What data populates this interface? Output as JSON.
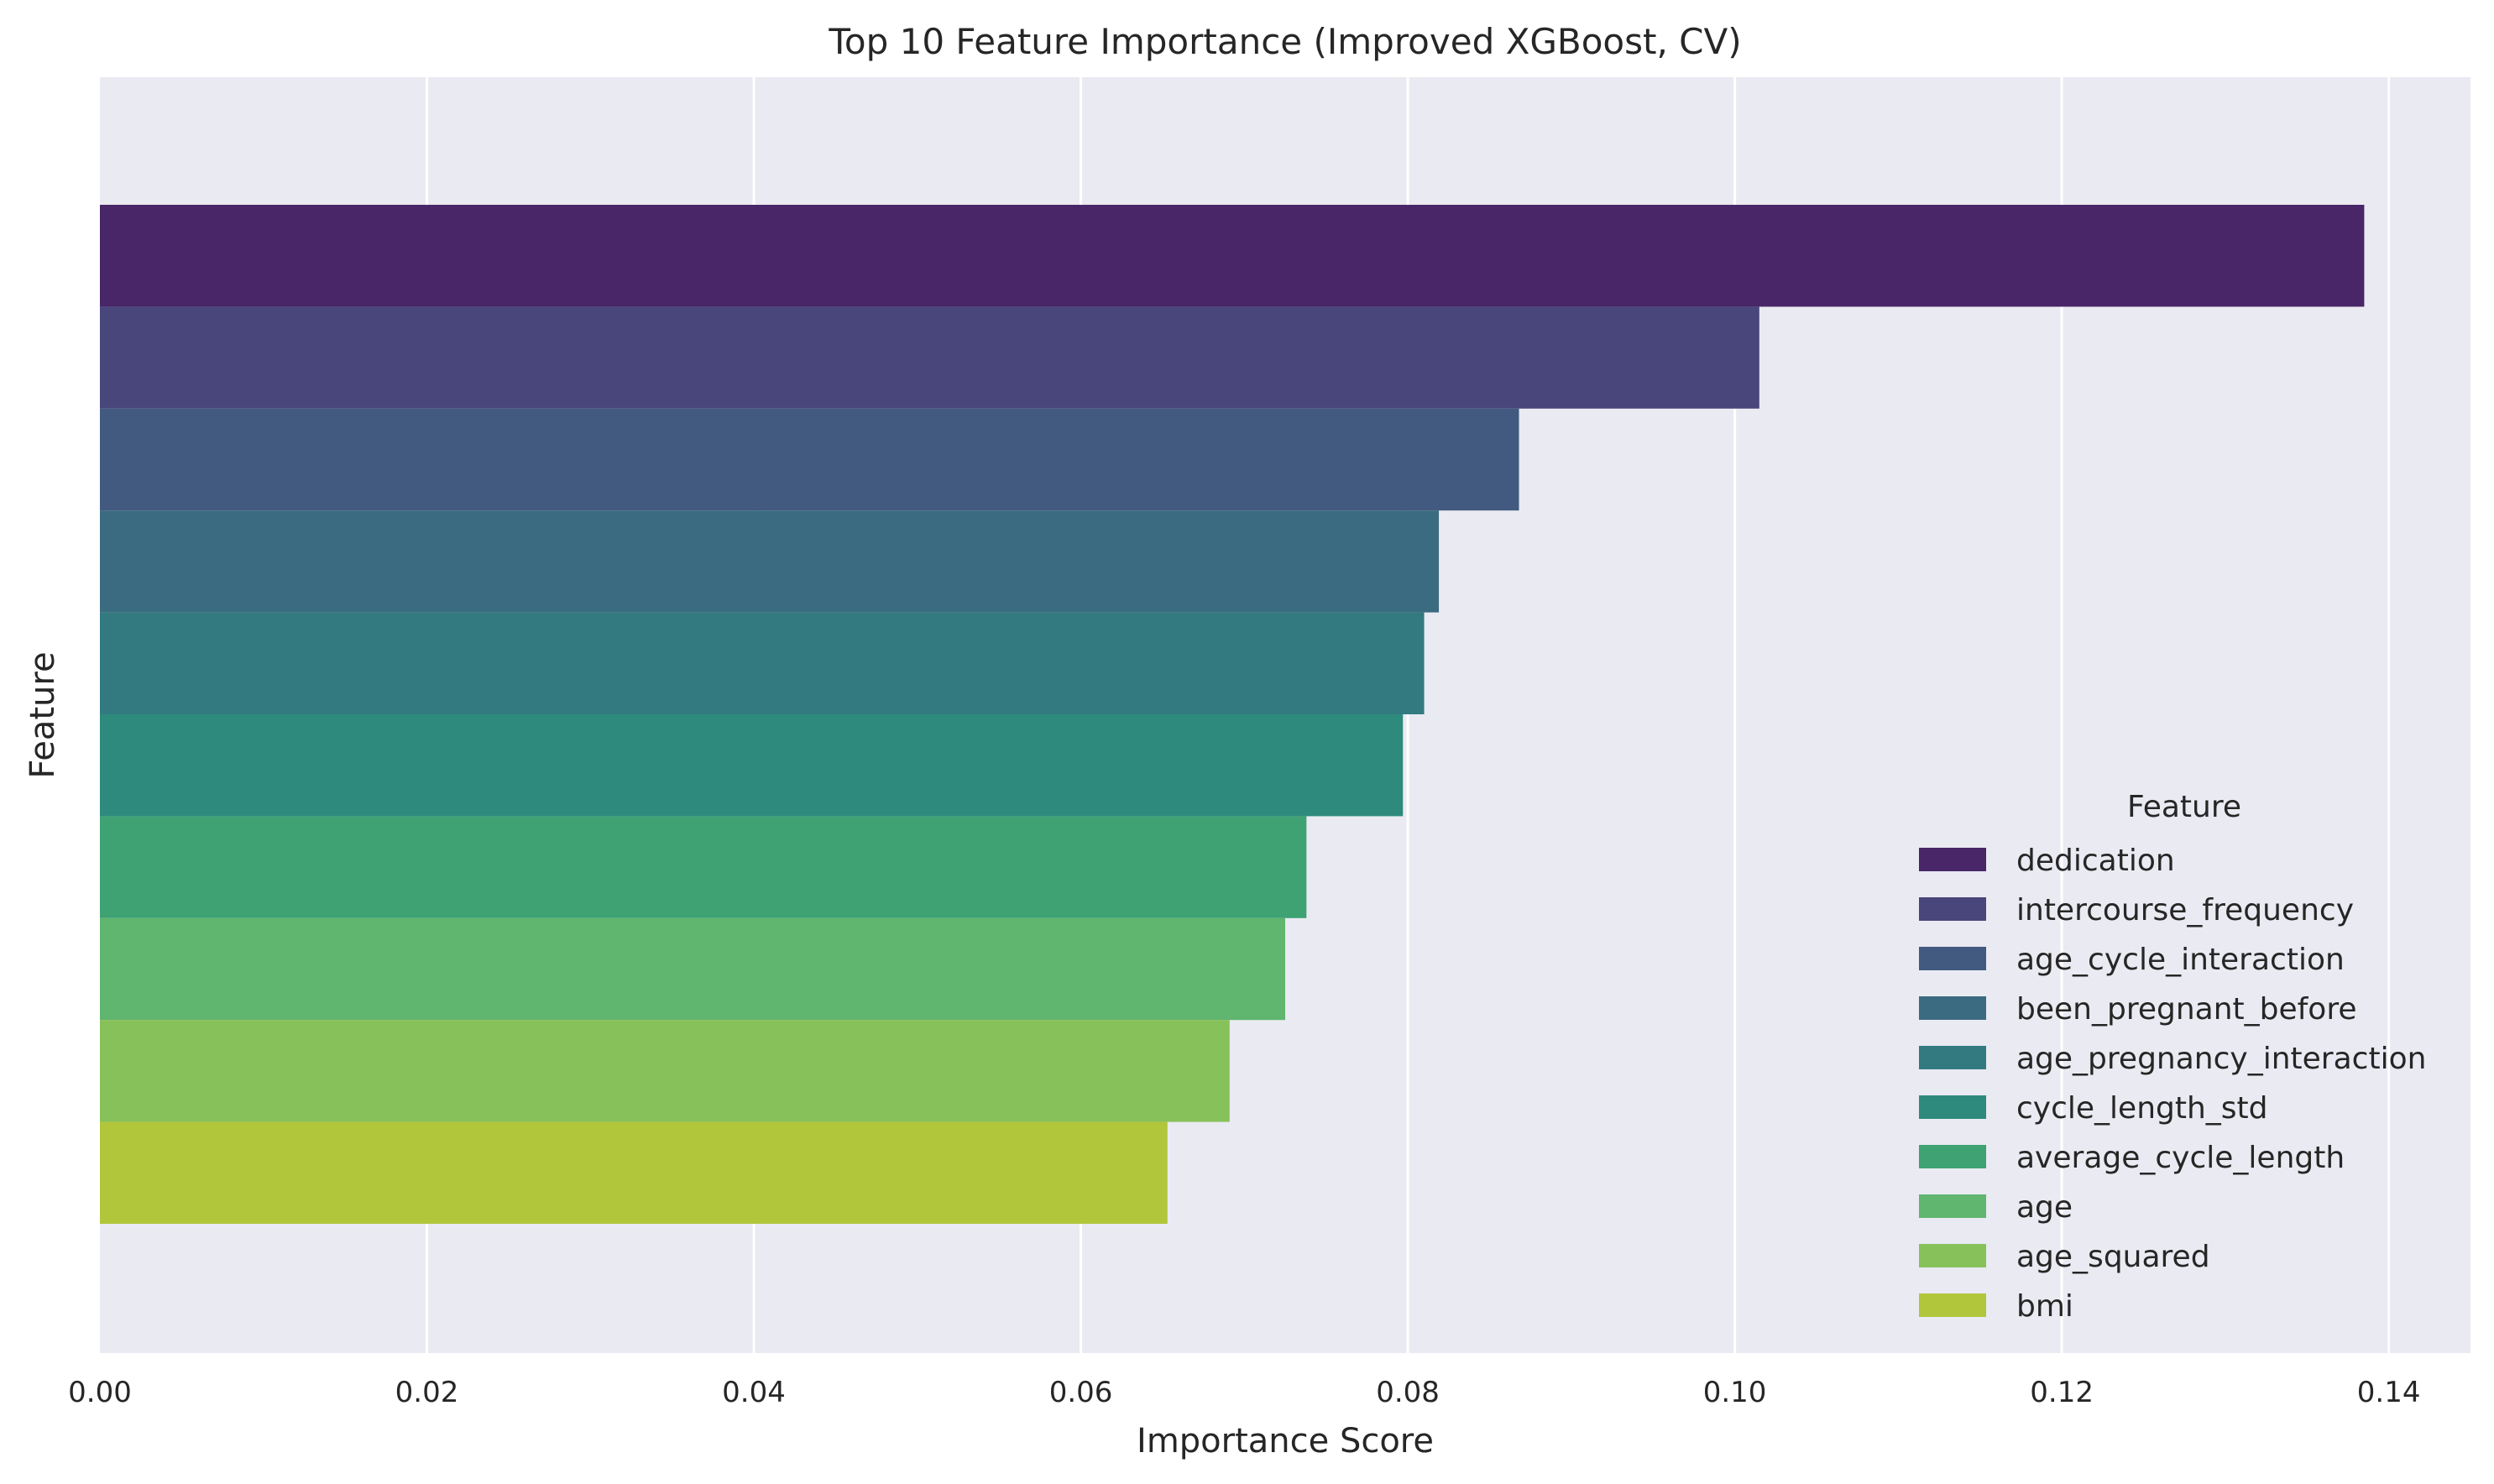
{
  "chart_data": {
    "type": "bar",
    "orientation": "horizontal",
    "title": "Top 10 Feature Importance (Improved XGBoost, CV)",
    "xlabel": "Importance Score",
    "ylabel": "Feature",
    "xlim": [
      0,
      0.145
    ],
    "xticks": [
      0.0,
      0.02,
      0.04,
      0.06,
      0.08,
      0.1,
      0.12,
      0.14
    ],
    "xtick_labels": [
      "0.00",
      "0.02",
      "0.04",
      "0.06",
      "0.08",
      "0.10",
      "0.12",
      "0.14"
    ],
    "grid": true,
    "legend": {
      "title": "Feature",
      "placement": "lower-right"
    },
    "categories": [
      "dedication",
      "intercourse_frequency",
      "age_cycle_interaction",
      "been_pregnant_before",
      "age_pregnancy_interaction",
      "cycle_length_std",
      "average_cycle_length",
      "age",
      "age_squared",
      "bmi"
    ],
    "values": [
      0.1385,
      0.1015,
      0.0868,
      0.0819,
      0.081,
      0.0797,
      0.0738,
      0.0725,
      0.0691,
      0.0653
    ],
    "colors": [
      "#482667",
      "#48467b",
      "#425a7f",
      "#3b6b80",
      "#327a7f",
      "#2e8a7c",
      "#3ea273",
      "#60b56f",
      "#87c159",
      "#b2c63b"
    ]
  }
}
